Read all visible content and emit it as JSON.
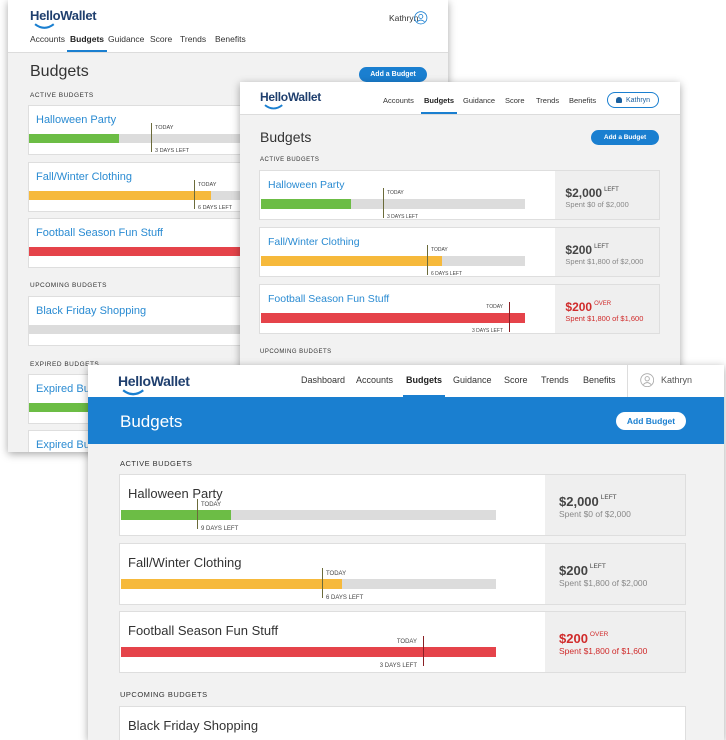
{
  "windows": [
    {
      "logo": "HelloWallet",
      "nav": [
        "Accounts",
        "Budgets",
        "Guidance",
        "Score",
        "Trends",
        "Benefits"
      ],
      "user": "Kathryn",
      "title": "Budgets",
      "button": "Add a Budget",
      "sections": [
        {
          "heading": "ACTIVE BUDGETS",
          "budgets": [
            {
              "name": "Halloween Party",
              "today": "TODAY",
              "days_left": "3 DAYS LEFT"
            },
            {
              "name": "Fall/Winter Clothing",
              "today": "TODAY",
              "days_left": "6 DAYS LEFT"
            },
            {
              "name": "Football Season Fun Stuff"
            }
          ]
        },
        {
          "heading": "UPCOMING BUDGETS",
          "budgets": [
            {
              "name": "Black Friday Shopping"
            }
          ]
        },
        {
          "heading": "EXPIRED BUDGETS",
          "budgets": [
            {
              "name": "Expired Budget"
            },
            {
              "name": "Expired Budget"
            }
          ]
        }
      ]
    },
    {
      "logo": "HelloWallet",
      "nav": [
        "Accounts",
        "Budgets",
        "Guidance",
        "Score",
        "Trends",
        "Benefits"
      ],
      "user": "Kathryn",
      "title": "Budgets",
      "button": "Add a Budget",
      "sections": [
        {
          "heading": "ACTIVE BUDGETS",
          "budgets": [
            {
              "name": "Halloween Party",
              "today": "TODAY",
              "days_left": "3 DAYS LEFT",
              "amount": "$2,000",
              "amount_note": "LEFT",
              "spent": "Spent $0 of $2,000"
            },
            {
              "name": "Fall/Winter Clothing",
              "today": "TODAY",
              "days_left": "6 DAYS LEFT",
              "amount": "$200",
              "amount_note": "LEFT",
              "spent": "Spent $1,800 of $2,000"
            },
            {
              "name": "Football Season Fun Stuff",
              "today": "TODAY",
              "days_left": "3 DAYS LEFT",
              "amount": "$200",
              "amount_note": "OVER",
              "spent": "Spent $1,800 of $1,600"
            }
          ]
        },
        {
          "heading": "UPCOMING BUDGETS",
          "budgets": []
        }
      ]
    },
    {
      "logo": "HelloWallet",
      "nav": [
        "Dashboard",
        "Accounts",
        "Budgets",
        "Guidance",
        "Score",
        "Trends",
        "Benefits"
      ],
      "user": "Kathryn",
      "title": "Budgets",
      "button": "Add Budget",
      "sections": [
        {
          "heading": "ACTIVE BUDGETS",
          "budgets": [
            {
              "name": "Halloween Party",
              "today": "TODAY",
              "days_left": "9 DAYS LEFT",
              "amount": "$2,000",
              "amount_note": "LEFT",
              "spent": "Spent $0 of $2,000"
            },
            {
              "name": "Fall/Winter Clothing",
              "today": "TODAY",
              "days_left": "6 DAYS LEFT",
              "amount": "$200",
              "amount_note": "LEFT",
              "spent": "Spent $1,800 of $2,000"
            },
            {
              "name": "Football Season Fun Stuff",
              "today": "TODAY",
              "days_left": "3 DAYS LEFT",
              "amount": "$200",
              "amount_note": "OVER",
              "spent": "Spent $1,800 of $1,600"
            }
          ]
        },
        {
          "heading": "UPCOMING BUDGETS",
          "budgets": [
            {
              "name": "Black Friday Shopping"
            }
          ]
        }
      ]
    }
  ]
}
